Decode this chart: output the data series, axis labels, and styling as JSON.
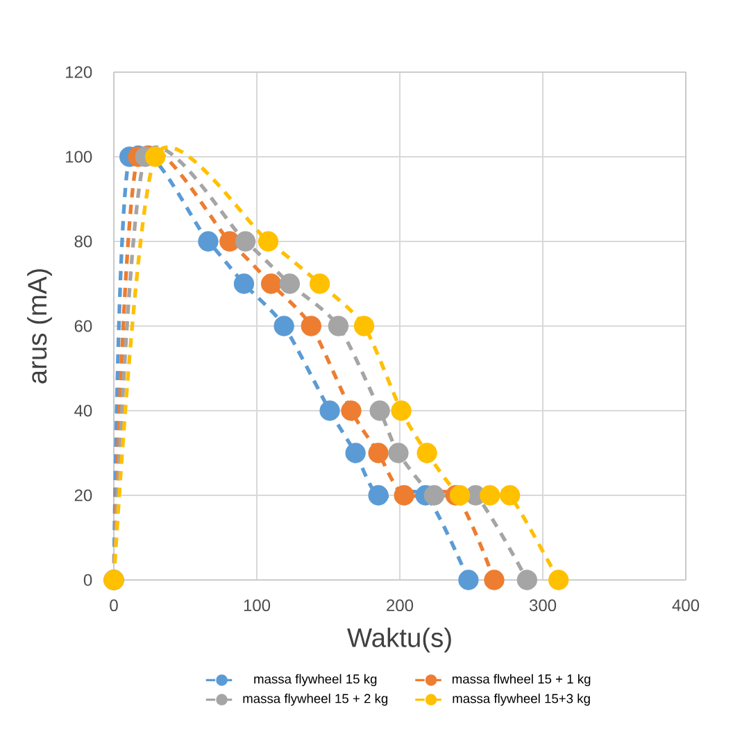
{
  "chart_data": {
    "type": "line",
    "xlabel": "Waktu(s)",
    "ylabel": "arus (mA)",
    "xlim": [
      0,
      400
    ],
    "xticks": [
      0,
      100,
      200,
      300,
      400
    ],
    "ylim": [
      0,
      120
    ],
    "yticks": [
      0,
      20,
      40,
      60,
      80,
      100,
      120
    ],
    "grid": true,
    "legend": "bottom",
    "marker": "circle",
    "line_style": "dashed",
    "series": [
      {
        "name": "massa flywheel 15 kg",
        "color": "#5b9bd5",
        "x": [
          0,
          11,
          66,
          91,
          119,
          151,
          169,
          185,
          218,
          248
        ],
        "values": [
          0,
          100,
          80,
          70,
          60,
          40,
          30,
          20,
          20,
          0
        ]
      },
      {
        "name": "massa flwheel 15 + 1 kg",
        "color": "#ed7d31",
        "x": [
          0,
          17,
          81,
          110,
          138,
          166,
          185,
          203,
          239,
          266
        ],
        "values": [
          0,
          100,
          80,
          70,
          60,
          40,
          30,
          20,
          20,
          0
        ]
      },
      {
        "name": "massa flywheel 15 + 2 kg",
        "color": "#a5a5a5",
        "x": [
          0,
          22,
          92,
          123,
          157,
          186,
          199,
          224,
          253,
          289
        ],
        "values": [
          0,
          100,
          80,
          70,
          60,
          40,
          30,
          20,
          20,
          0
        ]
      },
      {
        "name": "massa flywheel 15+3 kg",
        "color": "#ffc000",
        "x": [
          0,
          29,
          108,
          144,
          175,
          201,
          219,
          242,
          263,
          277,
          311
        ],
        "values": [
          0,
          100,
          80,
          70,
          60,
          40,
          30,
          20,
          20,
          20,
          0
        ]
      }
    ]
  }
}
